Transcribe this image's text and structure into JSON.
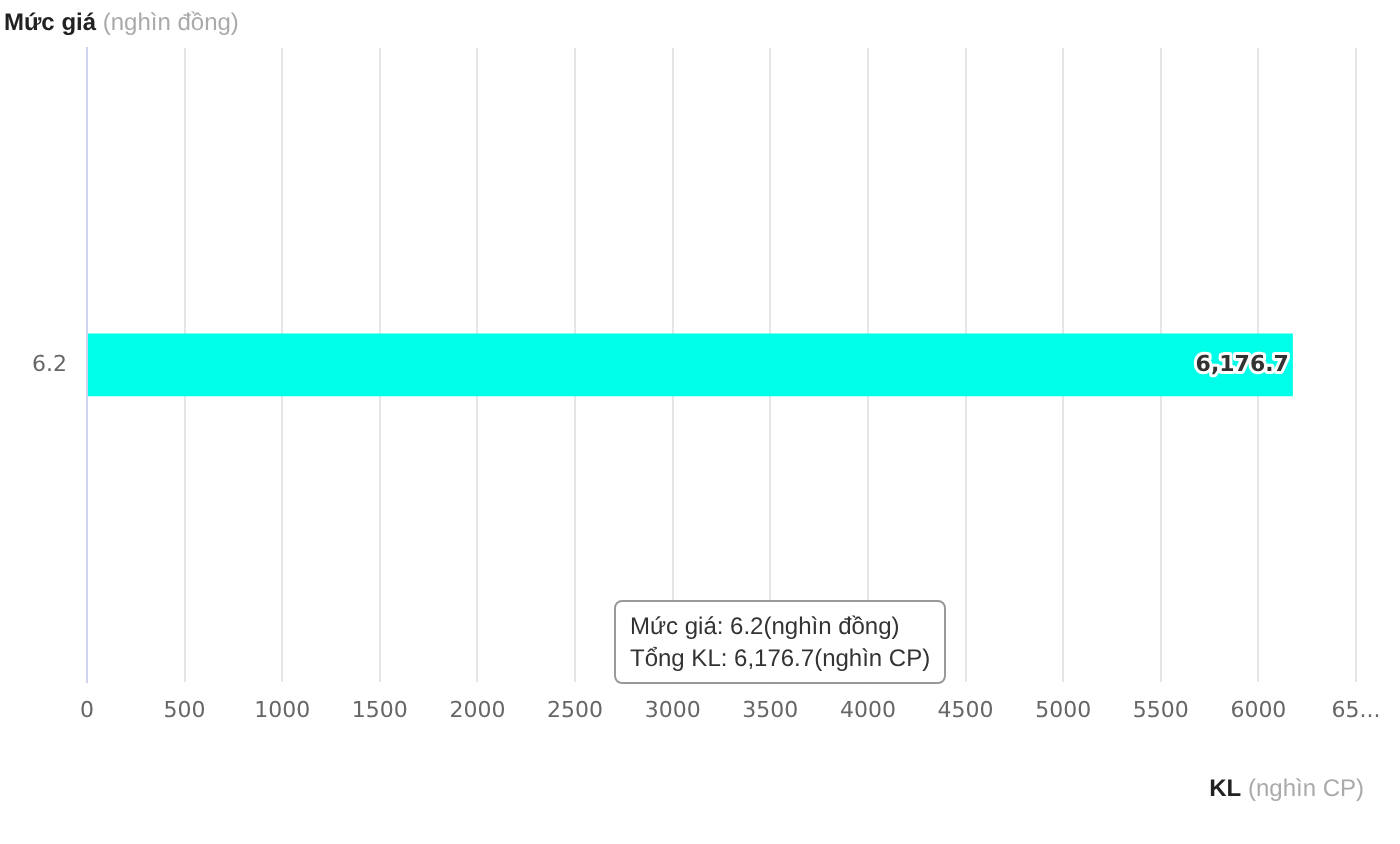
{
  "chart_data": {
    "type": "bar",
    "orientation": "horizontal",
    "ylabel": "Mức giá (nghìn đồng)",
    "xlabel": "KL (nghìn CP)",
    "categories": [
      "6.2"
    ],
    "series": [
      {
        "color": "#00ffe8",
        "values": [
          6176.7
        ],
        "value_labels": [
          "6,176.7"
        ]
      }
    ],
    "xlim": [
      0,
      6500
    ],
    "xticks": [
      0,
      500,
      1000,
      1500,
      2000,
      2500,
      3000,
      3500,
      4000,
      4500,
      5000,
      5500,
      6000,
      {
        "value": 6500,
        "label": "65..."
      }
    ],
    "grid": "x",
    "legend": false,
    "annotations": [
      "Mức giá: 6.2(nghìn đồng)",
      "Tổng KL: 6,176.7(nghìn CP)"
    ]
  }
}
